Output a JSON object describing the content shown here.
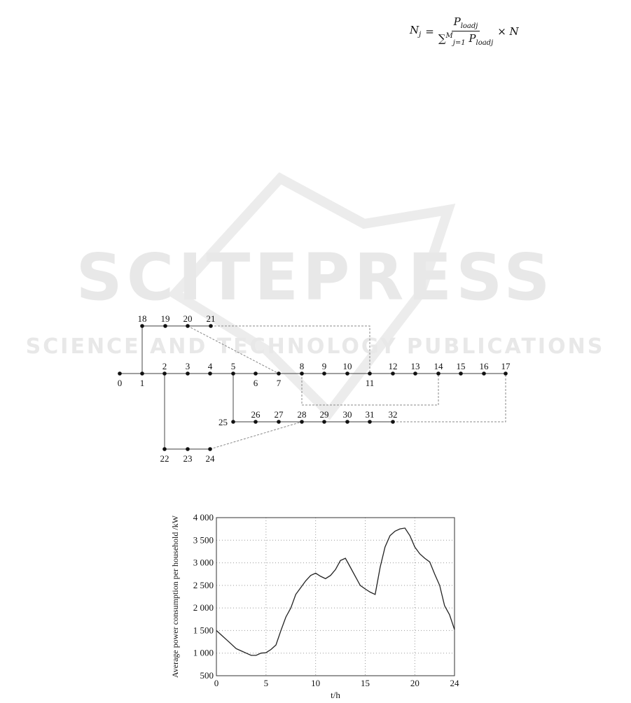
{
  "formula": {
    "lhs": "N",
    "lhs_sub": "j",
    "equals": "=",
    "numerator": "P",
    "numerator_sub": "loadj",
    "denominator_sum": "∑",
    "denominator_sum_sub": "j=1",
    "denominator_sum_sup": "M",
    "denominator": "P",
    "denominator_sub": "loadj",
    "times": "× N"
  },
  "watermark": {
    "title": "SCITEPRESS",
    "subtitle": "SCIENCE AND TECHNOLOGY PUBLICATIONS",
    "color": "#e6e6e6"
  },
  "network_diagram": {
    "nodes": [
      "0",
      "1",
      "2",
      "3",
      "4",
      "5",
      "6",
      "7",
      "8",
      "9",
      "10",
      "11",
      "12",
      "13",
      "14",
      "15",
      "16",
      "17",
      "18",
      "19",
      "20",
      "21",
      "22",
      "23",
      "24",
      "25",
      "26",
      "27",
      "28",
      "29",
      "30",
      "31",
      "32"
    ],
    "solid_edges": [
      [
        "0",
        "1"
      ],
      [
        "1",
        "2"
      ],
      [
        "2",
        "3"
      ],
      [
        "3",
        "4"
      ],
      [
        "4",
        "5"
      ],
      [
        "5",
        "6"
      ],
      [
        "6",
        "7"
      ],
      [
        "7",
        "8"
      ],
      [
        "8",
        "9"
      ],
      [
        "9",
        "10"
      ],
      [
        "10",
        "11"
      ],
      [
        "11",
        "12"
      ],
      [
        "12",
        "13"
      ],
      [
        "13",
        "14"
      ],
      [
        "14",
        "15"
      ],
      [
        "15",
        "16"
      ],
      [
        "16",
        "17"
      ],
      [
        "1",
        "18"
      ],
      [
        "18",
        "19"
      ],
      [
        "19",
        "20"
      ],
      [
        "20",
        "21"
      ],
      [
        "2",
        "22"
      ],
      [
        "22",
        "23"
      ],
      [
        "23",
        "24"
      ],
      [
        "5",
        "25"
      ],
      [
        "25",
        "26"
      ],
      [
        "26",
        "27"
      ],
      [
        "27",
        "28"
      ],
      [
        "28",
        "29"
      ],
      [
        "29",
        "30"
      ],
      [
        "30",
        "31"
      ],
      [
        "31",
        "32"
      ]
    ],
    "tie_lines_dashed": [
      [
        "20",
        "7"
      ],
      [
        "21",
        "11"
      ],
      [
        "8",
        "14"
      ],
      [
        "24",
        "28"
      ],
      [
        "32",
        "17"
      ]
    ]
  },
  "chart_data": {
    "type": "line",
    "title": "",
    "xlabel": "t/h",
    "ylabel": "Average power consumption per household /kW",
    "xlim": [
      0,
      24
    ],
    "ylim": [
      500,
      4000
    ],
    "xticks": [
      "0",
      "5",
      "10",
      "15",
      "20",
      "24"
    ],
    "yticks": [
      "500",
      "1 000",
      "1 500",
      "2 000",
      "2 500",
      "3 000",
      "3 500",
      "4 000"
    ],
    "grid": true,
    "x": [
      0,
      0.5,
      1,
      1.5,
      2,
      2.5,
      3,
      3.5,
      4,
      4.5,
      5,
      5.5,
      6,
      6.5,
      7,
      7.5,
      8,
      8.5,
      9,
      9.5,
      10,
      10.5,
      11,
      11.5,
      12,
      12.5,
      13,
      13.5,
      14,
      14.5,
      15,
      15.5,
      16,
      16.5,
      17,
      17.5,
      18,
      18.5,
      19,
      19.5,
      20,
      20.5,
      21,
      21.5,
      22,
      22.5,
      23,
      23.5,
      24
    ],
    "y": [
      1500,
      1400,
      1300,
      1200,
      1100,
      1050,
      1000,
      950,
      950,
      1000,
      1010,
      1080,
      1180,
      1500,
      1800,
      2000,
      2300,
      2450,
      2600,
      2720,
      2770,
      2700,
      2650,
      2720,
      2850,
      3050,
      3100,
      2900,
      2700,
      2500,
      2420,
      2350,
      2300,
      2900,
      3350,
      3600,
      3700,
      3750,
      3770,
      3600,
      3350,
      3200,
      3100,
      3020,
      2750,
      2500,
      2050,
      1850,
      1520
    ]
  }
}
